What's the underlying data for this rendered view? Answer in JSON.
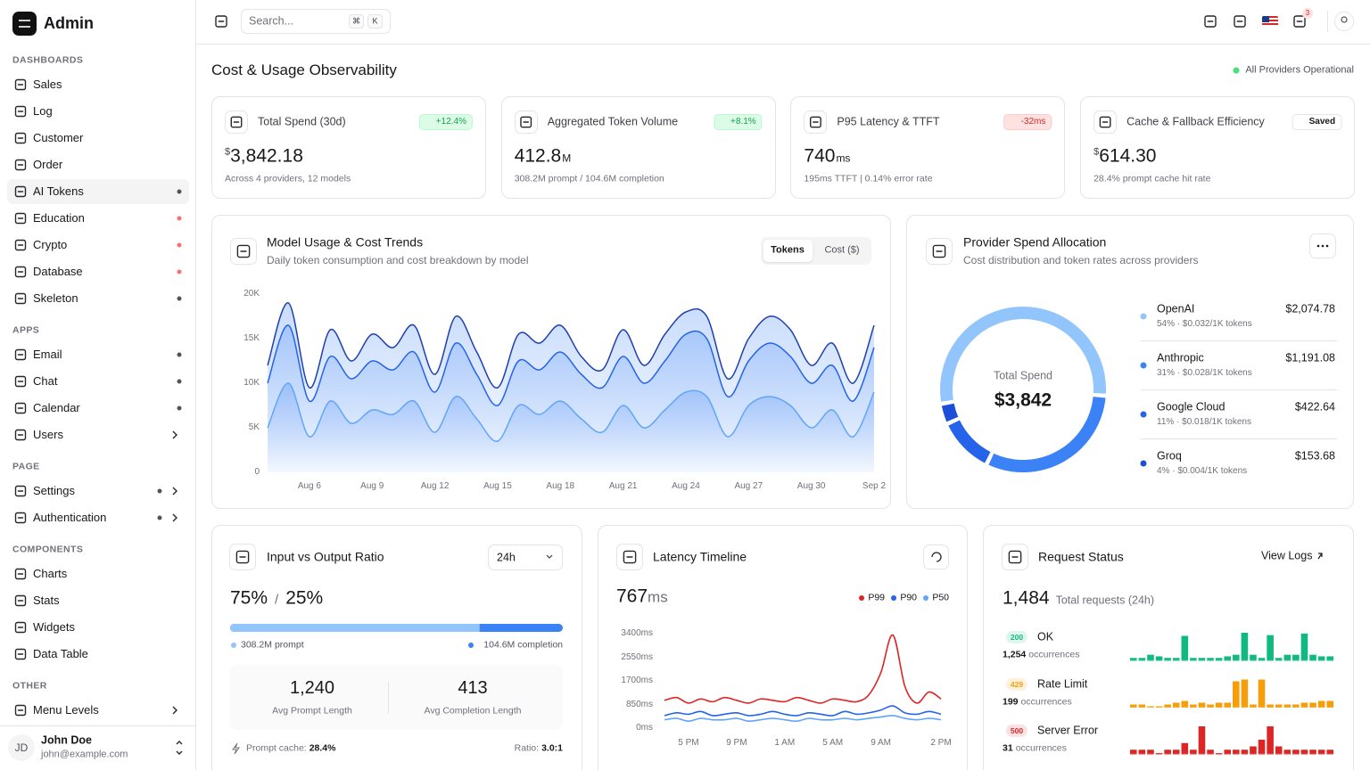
{
  "sidebar": {
    "brand": "Admin",
    "sections": [
      {
        "title": "DASHBOARDS",
        "items": [
          {
            "label": "Sales"
          },
          {
            "label": "Log"
          },
          {
            "label": "Customer"
          },
          {
            "label": "Order"
          },
          {
            "label": "AI Tokens",
            "active": true,
            "dot": "#52525b"
          },
          {
            "label": "Education",
            "dot": "#f87171"
          },
          {
            "label": "Crypto",
            "dot": "#f87171"
          },
          {
            "label": "Database",
            "dot": "#f87171"
          },
          {
            "label": "Skeleton",
            "dot": "#52525b"
          }
        ]
      },
      {
        "title": "APPS",
        "items": [
          {
            "label": "Email",
            "dot": "#52525b"
          },
          {
            "label": "Chat",
            "dot": "#52525b"
          },
          {
            "label": "Calendar",
            "dot": "#52525b"
          },
          {
            "label": "Users",
            "chevron": true
          }
        ]
      },
      {
        "title": "PAGE",
        "items": [
          {
            "label": "Settings",
            "dot": "#52525b",
            "chevron": true
          },
          {
            "label": "Authentication",
            "dot": "#52525b",
            "chevron": true
          }
        ]
      },
      {
        "title": "COMPONENTS",
        "items": [
          {
            "label": "Charts"
          },
          {
            "label": "Stats"
          },
          {
            "label": "Widgets"
          },
          {
            "label": "Data Table"
          }
        ]
      },
      {
        "title": "OTHER",
        "items": [
          {
            "label": "Menu Levels",
            "chevron": true
          }
        ]
      }
    ],
    "user": {
      "initials": "JD",
      "name": "John Doe",
      "email": "john@example.com"
    }
  },
  "topbar": {
    "search": "Search...",
    "keys": [
      "⌘",
      "K"
    ],
    "notifications": "3"
  },
  "page": {
    "title": "Cost & Usage Observability",
    "status": "All Providers Operational"
  },
  "stats": [
    {
      "label": "Total Spend (30d)",
      "badge": "+12.4%",
      "trend": "up",
      "prefix": "$",
      "value": "3,842.18",
      "sub": "Across 4 providers, 12 models"
    },
    {
      "label": "Aggregated Token Volume",
      "badge": "+8.1%",
      "trend": "up",
      "value": "412.8",
      "suffix": "M",
      "sub": "308.2M prompt / 104.6M completion"
    },
    {
      "label": "P95 Latency & TTFT",
      "badge": "-32ms",
      "trend": "down",
      "value": "740",
      "suffix": "ms",
      "sub": "195ms TTFT | 0.14% error rate"
    },
    {
      "label": "Cache & Fallback Efficiency",
      "badge": "Saved",
      "trend": "neutral",
      "prefix": "$",
      "value": "614.30",
      "sub": "28.4% prompt cache hit rate"
    }
  ],
  "usage": {
    "title": "Model Usage & Cost Trends",
    "subtitle": "Daily token consumption and cost breakdown by model",
    "tabs": [
      "Tokens",
      "Cost ($)"
    ],
    "chart_data": {
      "type": "area",
      "categories": [
        null,
        null,
        "Aug 6",
        null,
        null,
        "Aug 9",
        null,
        null,
        "Aug 12",
        null,
        null,
        "Aug 15",
        null,
        null,
        "Aug 18",
        null,
        null,
        "Aug 21",
        null,
        null,
        "Aug 24",
        null,
        null,
        "Aug 27",
        null,
        null,
        "Aug 30",
        null,
        null,
        "Sep 2"
      ],
      "ylim": [
        0,
        20000
      ],
      "yticks": [
        0,
        {
          "value": 5000,
          "label": "5K"
        },
        {
          "value": 10000,
          "label": "10K"
        },
        {
          "value": 15000,
          "label": "15K"
        },
        {
          "value": 20000,
          "label": "20K"
        }
      ],
      "series": [
        {
          "color": "#1e40af",
          "values": [
            12000,
            19000,
            9500,
            16000,
            12500,
            15500,
            14000,
            16500,
            11000,
            17500,
            13500,
            9500,
            15500,
            14500,
            16500,
            13000,
            11500,
            16000,
            12000,
            15500,
            18000,
            17500,
            10500,
            15000,
            17500,
            16000,
            12000,
            14500,
            10000,
            16500
          ]
        },
        {
          "color": "#2563eb",
          "values": [
            10000,
            16500,
            8000,
            13000,
            10500,
            12500,
            11500,
            13500,
            9000,
            14500,
            11000,
            7500,
            12500,
            11500,
            13500,
            11000,
            9500,
            13000,
            10000,
            12500,
            15500,
            15000,
            8500,
            12500,
            14500,
            13000,
            10000,
            12000,
            8000,
            14000
          ]
        },
        {
          "color": "#60a5fa",
          "values": [
            5000,
            10000,
            4000,
            8000,
            5500,
            7000,
            6500,
            8000,
            4500,
            8500,
            6000,
            3500,
            7500,
            6500,
            8000,
            6000,
            4500,
            7500,
            5000,
            7000,
            9000,
            8500,
            4000,
            7500,
            8500,
            7500,
            5000,
            7000,
            4000,
            9000
          ]
        }
      ]
    }
  },
  "providers": {
    "title": "Provider Spend Allocation",
    "subtitle": "Cost distribution and token rates across providers",
    "center_label": "Total Spend",
    "center_value": "$3,842",
    "chart_data": {
      "type": "donut",
      "categories": [
        "OpenAI",
        "Anthropic",
        "Google Cloud",
        "Groq"
      ],
      "values": [
        2074.78,
        1191.08,
        422.64,
        153.68
      ],
      "value_labels": [
        "$2,074.78",
        "$1,191.08",
        "$422.64",
        "$153.68"
      ],
      "notes": [
        "54% · $0.032/1K tokens",
        "31% · $0.028/1K tokens",
        "11% · $0.018/1K tokens",
        "4% · $0.004/1K tokens"
      ],
      "colors": [
        "#93c5fd",
        "#3b82f6",
        "#2563eb",
        "#1d4ed8"
      ]
    }
  },
  "ratio": {
    "title": "Input vs Output Ratio",
    "range": "24h",
    "chart_data": {
      "type": "progress",
      "values": [
        75,
        25
      ],
      "value_labels": [
        "75%",
        "25%"
      ],
      "separator": "/",
      "colors": [
        "#93c5fd",
        "#3b82f6"
      ],
      "legend": [
        "308.2M prompt",
        "104.6M completion"
      ]
    },
    "metrics": [
      {
        "value": "1,240",
        "label": "Avg Prompt Length"
      },
      {
        "value": "413",
        "label": "Avg Completion Length"
      }
    ],
    "footer": {
      "cache_label": "Prompt cache:",
      "cache_value": "28.4%",
      "ratio_label": "Ratio:",
      "ratio_value": "3.0:1"
    }
  },
  "latency": {
    "title": "Latency Timeline",
    "value": "767",
    "unit": "ms",
    "chart_data": {
      "type": "line",
      "categories": [
        null,
        null,
        "5 PM",
        null,
        null,
        null,
        "9 PM",
        null,
        null,
        null,
        "1 AM",
        null,
        null,
        null,
        "5 AM",
        null,
        null,
        null,
        "9 AM",
        null,
        null,
        null,
        null,
        "2 PM"
      ],
      "ylim": [
        0,
        3400
      ],
      "yticks": [
        {
          "value": 0,
          "label": "0ms"
        },
        {
          "value": 850,
          "label": "850ms"
        },
        {
          "value": 1700,
          "label": "1700ms"
        },
        {
          "value": 2550,
          "label": "2550ms"
        },
        {
          "value": 3400,
          "label": "3400ms"
        }
      ],
      "series": [
        {
          "name": "P99",
          "color": "#dc2626",
          "values": [
            1000,
            1100,
            900,
            1050,
            950,
            1100,
            1000,
            900,
            1050,
            1000,
            950,
            1100,
            1000,
            900,
            1050,
            1000,
            950,
            1200,
            2000,
            3350,
            1500,
            900,
            1300,
            1050
          ]
        },
        {
          "name": "P90",
          "color": "#2563eb",
          "values": [
            450,
            550,
            500,
            600,
            450,
            500,
            550,
            450,
            500,
            600,
            500,
            450,
            550,
            500,
            450,
            600,
            500,
            550,
            650,
            800,
            550,
            500,
            600,
            500
          ]
        },
        {
          "name": "P50",
          "color": "#60a5fa",
          "values": [
            300,
            350,
            250,
            350,
            300,
            300,
            350,
            250,
            300,
            350,
            300,
            250,
            350,
            300,
            300,
            350,
            300,
            350,
            400,
            450,
            350,
            300,
            350,
            300
          ]
        }
      ]
    }
  },
  "requests": {
    "title": "Request Status",
    "link": "View Logs",
    "total": "1,484",
    "total_label": "Total requests (24h)",
    "statuses": [
      {
        "code": "200",
        "label": "OK",
        "count": "1,254",
        "unit": "occurrences",
        "color": "#10b981",
        "chart_data": {
          "type": "bar",
          "values": [
            4,
            4,
            12,
            8,
            4,
            4,
            60,
            4,
            4,
            4,
            4,
            8,
            12,
            68,
            12,
            4,
            62,
            4,
            12,
            12,
            66,
            12,
            8,
            8
          ]
        }
      },
      {
        "code": "429",
        "label": "Rate Limit",
        "count": "199",
        "unit": "occurrences",
        "color": "#f59e0b",
        "chart_data": {
          "type": "bar",
          "values": [
            2,
            2,
            0,
            0,
            2,
            4,
            6,
            2,
            4,
            2,
            4,
            4,
            28,
            30,
            2,
            30,
            2,
            2,
            2,
            2,
            4,
            4,
            6,
            6
          ]
        }
      },
      {
        "code": "500",
        "label": "Server Error",
        "count": "31",
        "unit": "occurrences",
        "color": "#dc2626",
        "chart_data": {
          "type": "bar",
          "values": [
            1,
            1,
            1,
            0,
            1,
            1,
            3,
            1,
            8,
            1,
            0,
            1,
            1,
            1,
            2,
            4,
            8,
            2,
            1,
            1,
            1,
            1,
            1,
            1
          ]
        }
      }
    ]
  }
}
